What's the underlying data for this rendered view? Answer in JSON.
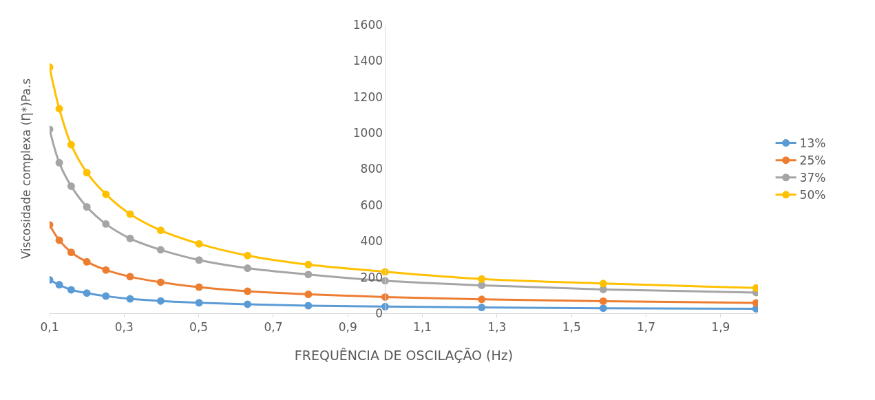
{
  "chart_data": {
    "type": "line",
    "xlabel": "FREQUÊNCIA DE OSCILAÇÃO (Hz)",
    "ylabel": "Viscosidade complexa (Ƞ*)Pa.s",
    "x": [
      0.1,
      0.126,
      0.158,
      0.2,
      0.251,
      0.316,
      0.398,
      0.501,
      0.631,
      0.794,
      1.0,
      1.259,
      1.585,
      1.995
    ],
    "series": [
      {
        "name": "13%",
        "color": "#5b9bd5",
        "values": [
          185,
          158,
          130,
          112,
          95,
          80,
          68,
          58,
          50,
          42,
          37,
          32,
          28,
          25
        ]
      },
      {
        "name": "25%",
        "color": "#ed7d31",
        "values": [
          490,
          405,
          338,
          285,
          240,
          203,
          172,
          145,
          122,
          105,
          90,
          77,
          67,
          57
        ]
      },
      {
        "name": "37%",
        "color": "#a5a5a5",
        "values": [
          1020,
          835,
          705,
          590,
          495,
          415,
          352,
          295,
          250,
          215,
          180,
          155,
          132,
          115
        ]
      },
      {
        "name": "50%",
        "color": "#ffc000",
        "values": [
          1365,
          1135,
          935,
          780,
          660,
          550,
          460,
          385,
          320,
          270,
          230,
          190,
          165,
          140
        ]
      }
    ],
    "xlim": [
      0.1,
      2.0
    ],
    "xticks": [
      {
        "value": 0.1,
        "label": "0,1"
      },
      {
        "value": 0.3,
        "label": "0,3"
      },
      {
        "value": 0.5,
        "label": "0,5"
      },
      {
        "value": 0.7,
        "label": "0,7"
      },
      {
        "value": 0.9,
        "label": "0,9"
      },
      {
        "value": 1.1,
        "label": "1,1"
      },
      {
        "value": 1.3,
        "label": "1,3"
      },
      {
        "value": 1.5,
        "label": "1,5"
      },
      {
        "value": 1.7,
        "label": "1,7"
      },
      {
        "value": 1.9,
        "label": "1,9"
      }
    ],
    "ylim": [
      0,
      1600
    ],
    "yticks": [
      0,
      200,
      400,
      600,
      800,
      1000,
      1200,
      1400,
      1600
    ],
    "legend": "right",
    "marker": "circle",
    "line_style": "solid"
  }
}
